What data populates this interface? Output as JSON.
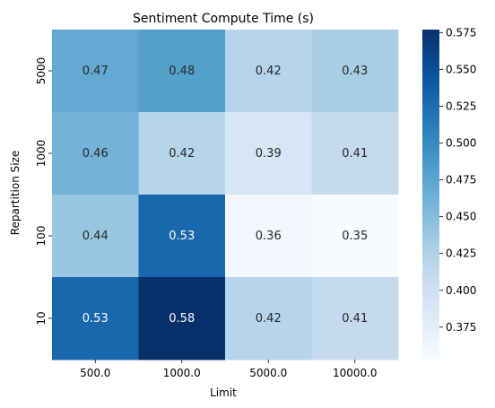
{
  "chart_data": {
    "type": "heatmap",
    "title": "Sentiment Compute Time (s)",
    "xlabel": "Limit",
    "ylabel": "Repartition Size",
    "x_categories": [
      "500.0",
      "1000.0",
      "5000.0",
      "10000.0"
    ],
    "y_categories": [
      "5000",
      "1000",
      "100",
      "10"
    ],
    "values": [
      [
        0.47,
        0.48,
        0.42,
        0.43
      ],
      [
        0.46,
        0.42,
        0.39,
        0.41
      ],
      [
        0.44,
        0.53,
        0.36,
        0.35
      ],
      [
        0.53,
        0.58,
        0.42,
        0.41
      ]
    ],
    "value_labels": [
      [
        "0.47",
        "0.48",
        "0.42",
        "0.43"
      ],
      [
        "0.46",
        "0.42",
        "0.39",
        "0.41"
      ],
      [
        "0.44",
        "0.53",
        "0.36",
        "0.35"
      ],
      [
        "0.53",
        "0.58",
        "0.42",
        "0.41"
      ]
    ],
    "colormap": "Blues",
    "color_range": [
      0.353,
      0.577
    ],
    "colorbar_ticks": [
      "0.375",
      "0.400",
      "0.425",
      "0.450",
      "0.475",
      "0.500",
      "0.525",
      "0.550",
      "0.575"
    ],
    "colorbar_tick_values": [
      0.375,
      0.4,
      0.425,
      0.45,
      0.475,
      0.5,
      0.525,
      0.55,
      0.575
    ],
    "colors": {
      "low": "#f7fbff",
      "high": "#08306b",
      "text_dark": "#262626",
      "text_light": "#ffffff"
    }
  }
}
